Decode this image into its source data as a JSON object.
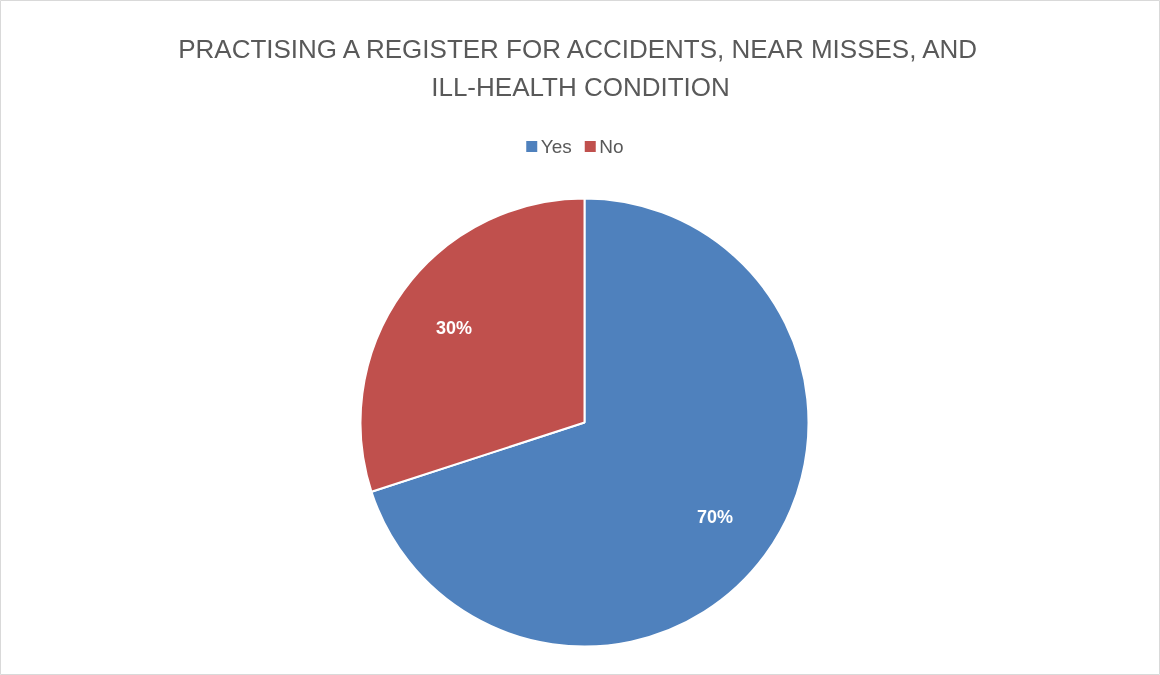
{
  "chart_data": {
    "type": "pie",
    "title": "PRACTISING A REGISTER FOR ACCIDENTS, NEAR MISSES, AND ILL-HEALTH CONDITION",
    "categories": [
      "Yes",
      "No"
    ],
    "values": [
      70,
      30
    ],
    "colors": [
      "#4f81bd",
      "#c0504d"
    ],
    "value_labels": [
      "70%",
      "30%"
    ],
    "legend": "top"
  }
}
